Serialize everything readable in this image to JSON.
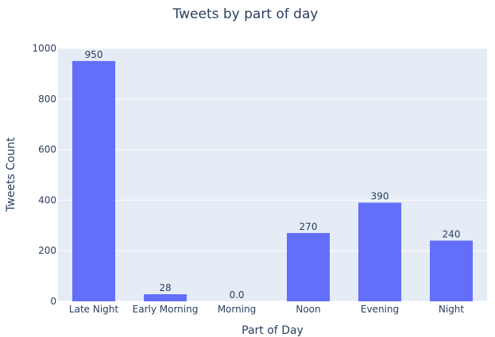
{
  "chart_data": {
    "type": "bar",
    "title": "Tweets by part of day",
    "xlabel": "Part of Day",
    "ylabel": "Tweets Count",
    "categories": [
      "Late Night",
      "Early Morning",
      "Morning",
      "Noon",
      "Evening",
      "Night"
    ],
    "values": [
      950,
      28,
      0,
      270,
      390,
      240
    ],
    "value_labels": [
      "950",
      "28",
      "0.0",
      "270",
      "390",
      "240"
    ],
    "yticks": [
      0,
      200,
      400,
      600,
      800,
      1000
    ],
    "ylim": [
      0,
      1000
    ],
    "grid": true,
    "bar_color": "#636efa",
    "plot_bg": "#e5ecf6"
  }
}
